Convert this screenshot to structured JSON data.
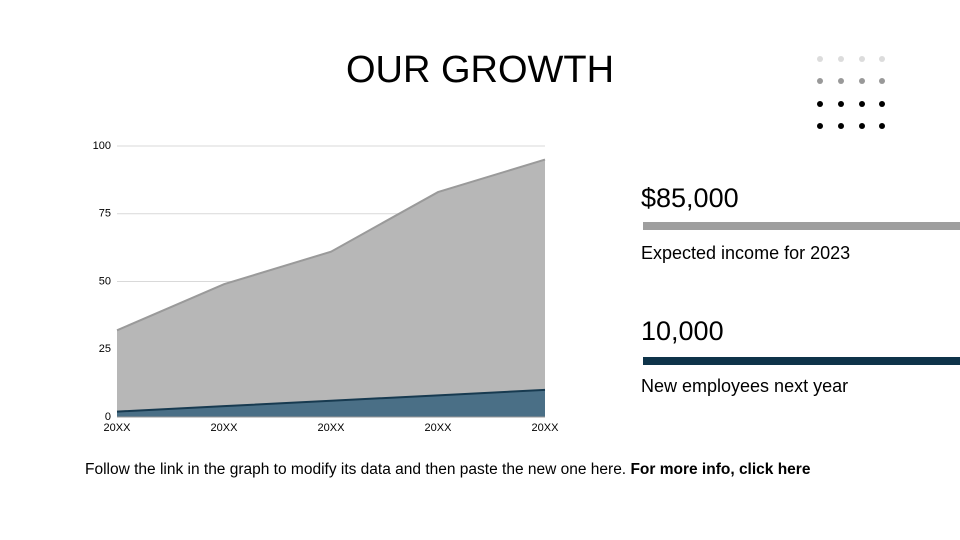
{
  "slide": {
    "title": "OUR GROWTH",
    "stats": [
      {
        "value": "$85,000",
        "label": "Expected income for 2023",
        "color": "#9e9e9e"
      },
      {
        "value": "10,000",
        "label": "New employees next year",
        "color": "#0e3349"
      }
    ],
    "footer": {
      "text": "Follow the link in the graph to modify its data and then paste the new one here.",
      "link": "For more info, click here"
    }
  },
  "chart_data": {
    "type": "area",
    "categories": [
      "20XX",
      "20XX",
      "20XX",
      "20XX",
      "20XX"
    ],
    "series": [
      {
        "color": "#b7b7b7",
        "line_color": "#9a9a9a",
        "values": [
          32,
          49,
          61,
          83,
          95
        ]
      },
      {
        "color": "#4a6f86",
        "line_color": "#173a50",
        "values": [
          2,
          4,
          6,
          8,
          10
        ]
      }
    ],
    "ylim": [
      0,
      100
    ],
    "yticks": [
      0,
      25,
      50,
      75,
      100
    ],
    "grid": true
  }
}
